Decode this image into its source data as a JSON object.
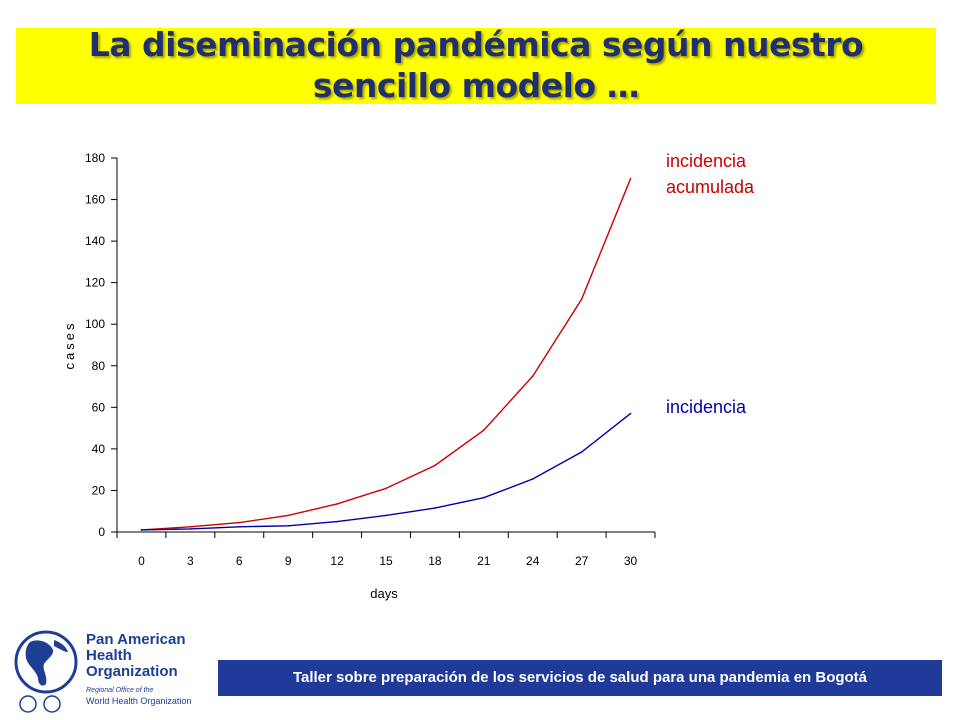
{
  "slide": {
    "title": "La diseminación pandémica según nuestro sencillo modelo …",
    "footer": "Taller sobre preparación de los servicios de salud para una pandemia en Bogotá"
  },
  "logo": {
    "name": "Pan American Health Organization",
    "line1": "Pan American",
    "line2": "Health",
    "line3": "Organization",
    "sub1": "Regional Office of the",
    "sub2": "World Health Organization"
  },
  "colors": {
    "title_bg": "#ffff00",
    "title_text": "#1f2f6f",
    "footer_bg": "#1f3a98",
    "acumulada": "#cc0000",
    "incidencia": "#0000aa"
  },
  "chart_data": {
    "type": "line",
    "xlabel": "days",
    "ylabel": "cases",
    "x": [
      0,
      3,
      6,
      9,
      12,
      15,
      18,
      21,
      24,
      27,
      30
    ],
    "ylim": [
      0,
      180
    ],
    "yticks": [
      0,
      20,
      40,
      60,
      80,
      100,
      120,
      140,
      160,
      180
    ],
    "grid": false,
    "series": [
      {
        "name": "incidencia acumulada",
        "color": "#cc0000",
        "values": [
          1,
          2.5,
          4.5,
          8,
          13.5,
          21,
          32,
          49,
          75,
          112,
          170
        ]
      },
      {
        "name": "incidencia",
        "color": "#0000aa",
        "values": [
          1,
          1.5,
          2.5,
          3,
          5,
          8,
          11.5,
          16.5,
          25.5,
          38.5,
          57
        ]
      }
    ],
    "legend": [
      "incidencia acumulada",
      "incidencia"
    ]
  }
}
